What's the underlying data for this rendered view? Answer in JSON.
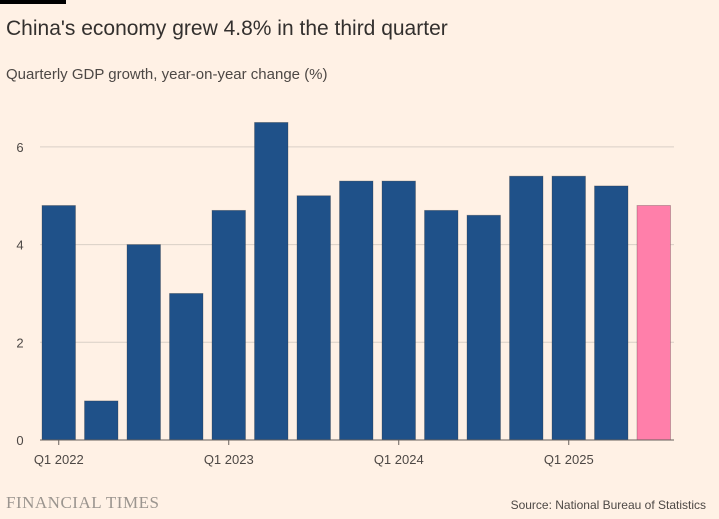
{
  "header": {
    "title": "China's economy grew 4.8% in the third quarter",
    "subtitle": "Quarterly GDP growth, year-on-year change (%)"
  },
  "footer": {
    "logo_text": "FINANCIAL TIMES",
    "source": "Source: National Bureau of Statistics"
  },
  "colors": {
    "bar": "#1f5189",
    "highlight_bar": "#ff7faa",
    "background": "#fff1e5",
    "gridline": "#d9cfc6"
  },
  "chart_data": {
    "type": "bar",
    "categories": [
      "Q1 2022",
      "Q2 2022",
      "Q3 2022",
      "Q4 2022",
      "Q1 2023",
      "Q2 2023",
      "Q3 2023",
      "Q4 2023",
      "Q1 2024",
      "Q2 2024",
      "Q3 2024",
      "Q4 2024",
      "Q1 2025",
      "Q2 2025",
      "Q3 2025"
    ],
    "values": [
      4.8,
      0.8,
      4.0,
      3.0,
      4.7,
      6.5,
      5.0,
      5.3,
      5.3,
      4.7,
      4.6,
      5.4,
      5.4,
      5.2,
      4.8
    ],
    "highlight_index": 14,
    "x_tick_labels": [
      "Q1 2022",
      "Q1 2023",
      "Q1 2024",
      "Q1 2025"
    ],
    "y_ticks": [
      0,
      2,
      4,
      6
    ],
    "ylim": [
      0,
      7
    ],
    "grid": true,
    "title": "China's economy grew 4.8% in the third quarter",
    "subtitle": "Quarterly GDP growth, year-on-year change (%)",
    "xlabel": "",
    "ylabel": ""
  }
}
